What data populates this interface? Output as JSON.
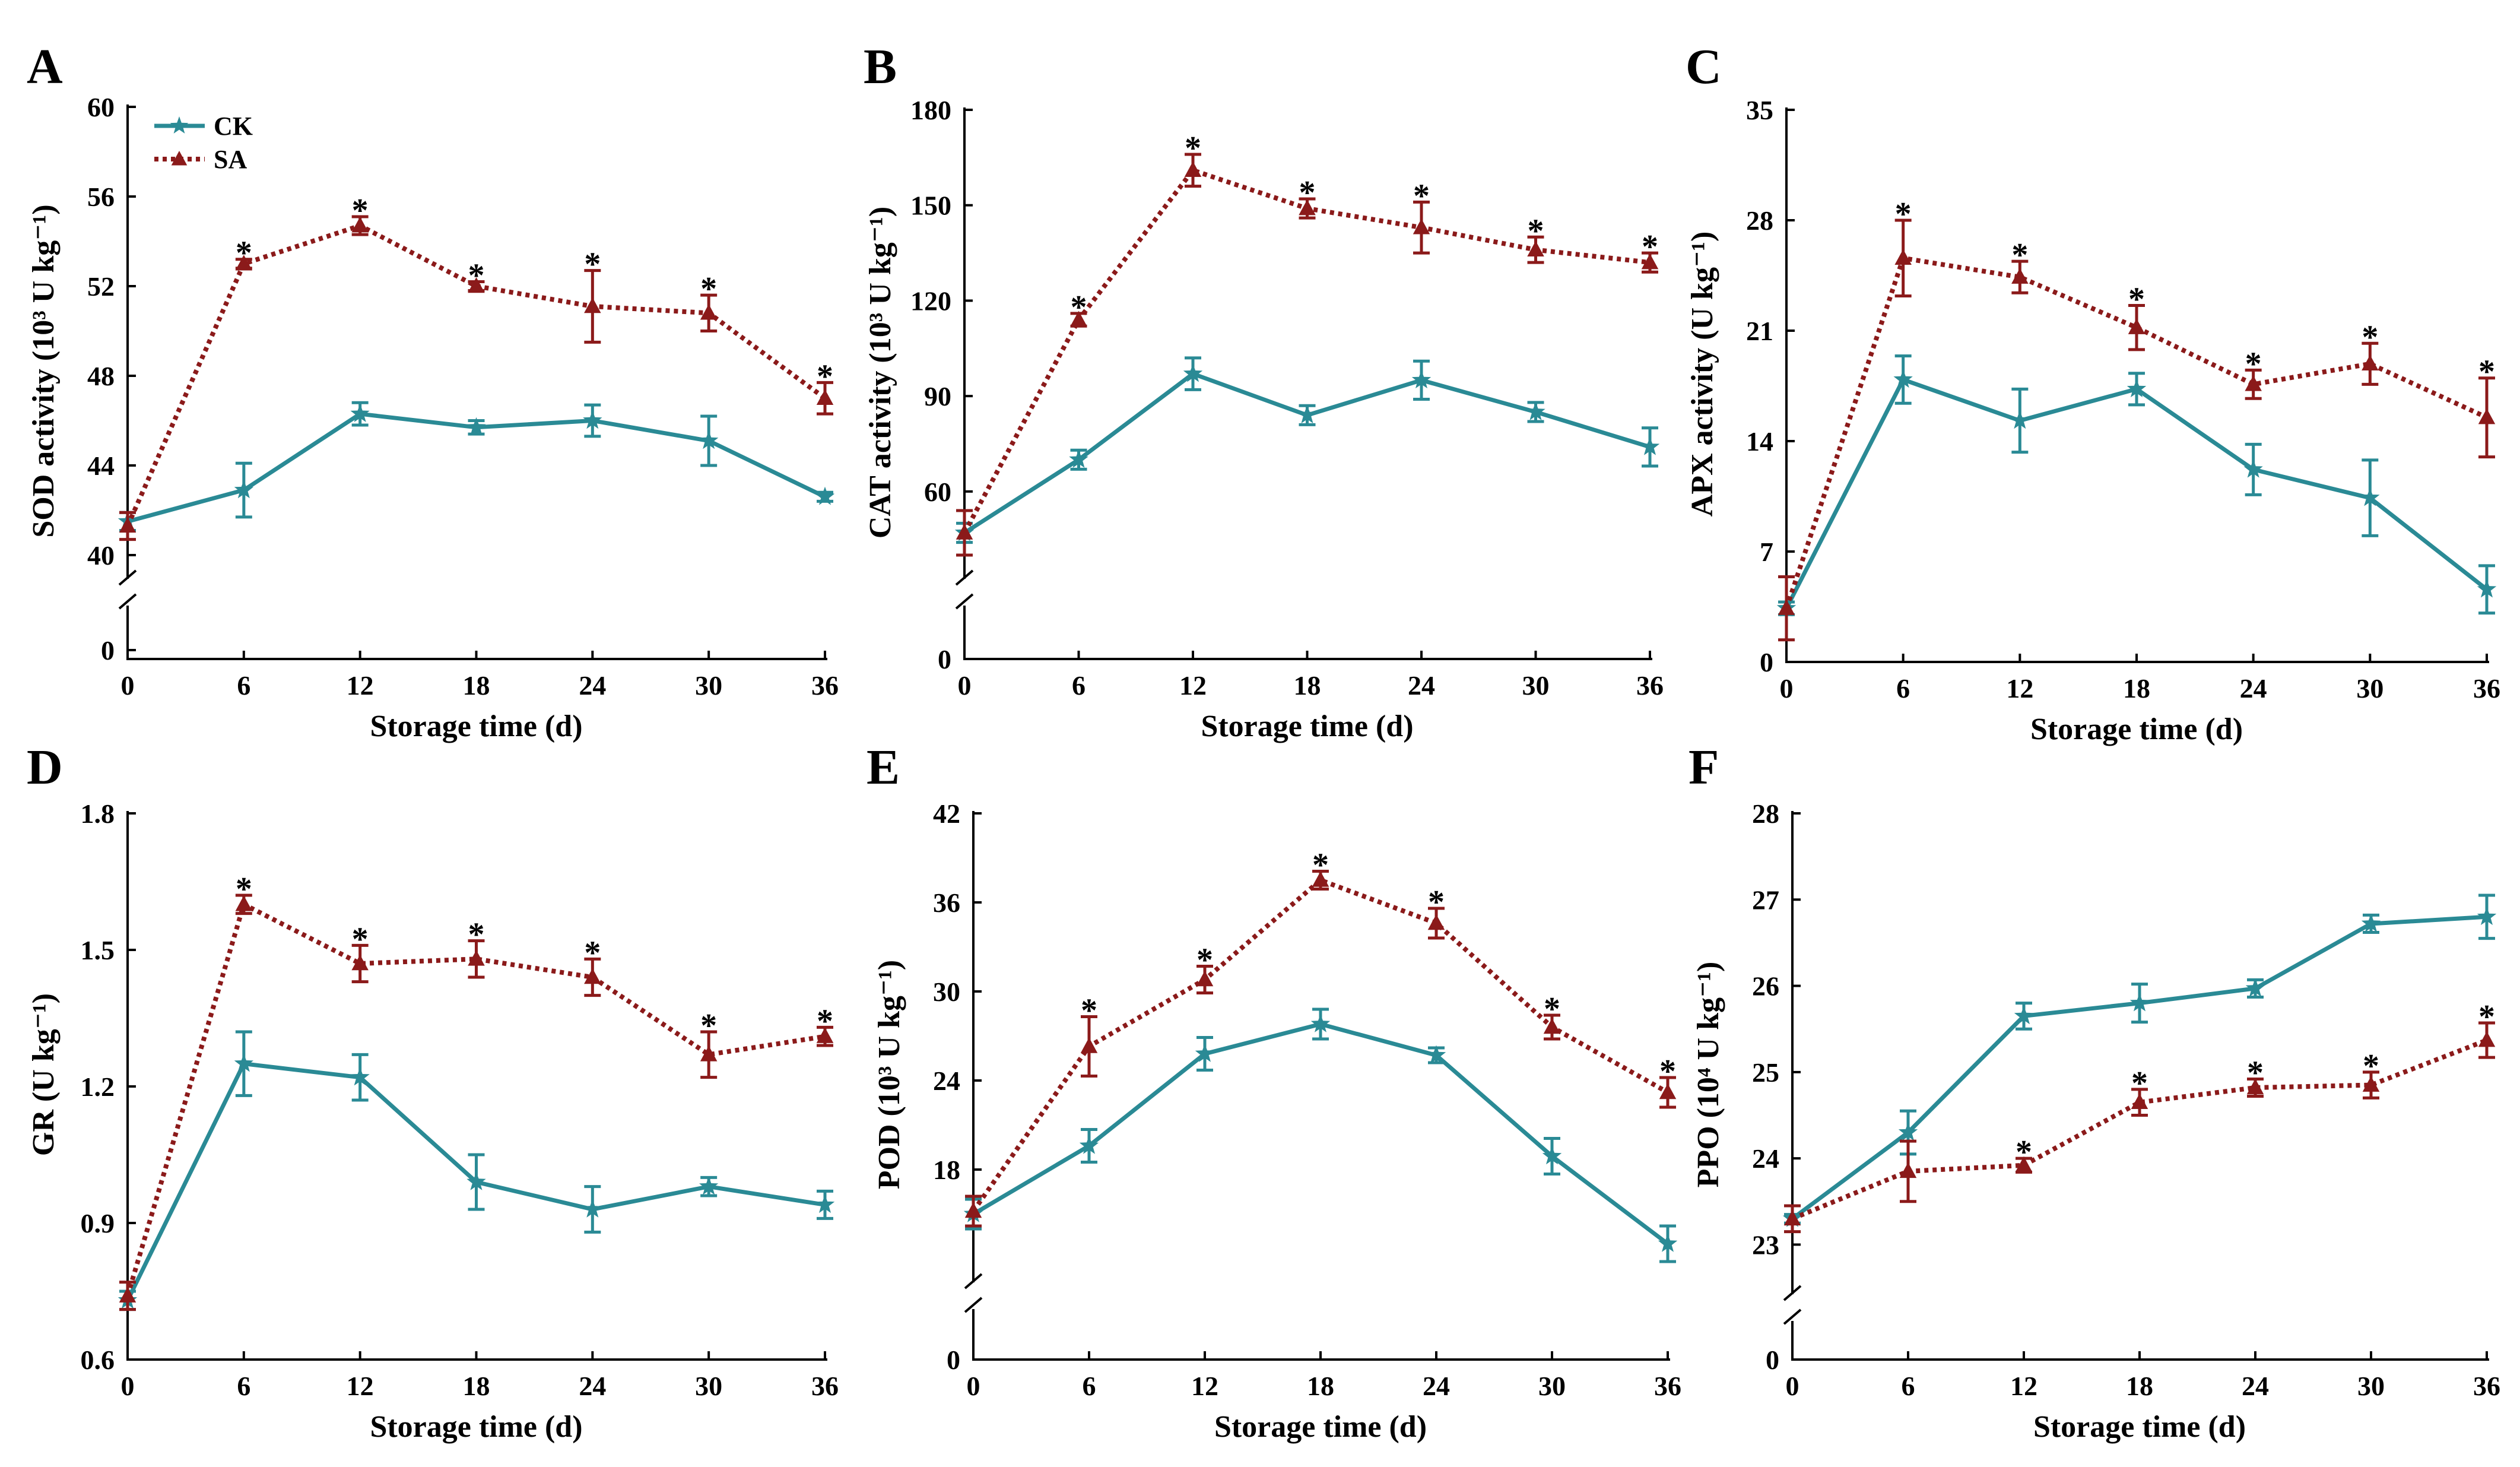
{
  "colors": {
    "CK": "#2a8a95",
    "SA": "#8b1a1a"
  },
  "legend": {
    "ck_label": "CK",
    "sa_label": "SA",
    "ck_marker": "star",
    "sa_marker": "triangle"
  },
  "chart_data": [
    {
      "panel": "A",
      "type": "line",
      "xlabel": "Storage time (d)",
      "ylabel": "SOD activity (10³ U kg⁻¹)",
      "x": [
        0,
        6,
        12,
        18,
        24,
        30,
        36
      ],
      "xticks": [
        "0",
        "6",
        "12",
        "18",
        "24",
        "30",
        "36"
      ],
      "yticks": [
        40,
        44,
        48,
        52,
        56,
        60
      ],
      "ylim": [
        40,
        60
      ],
      "axis_break": true,
      "zero_label": "0",
      "series": [
        {
          "name": "CK",
          "values": [
            41.5,
            42.9,
            46.3,
            45.7,
            46.0,
            45.1,
            42.6
          ],
          "errors": [
            0.4,
            1.2,
            0.5,
            0.3,
            0.7,
            1.1,
            0.2
          ]
        },
        {
          "name": "SA",
          "values": [
            41.3,
            53.0,
            54.7,
            52.0,
            51.1,
            50.8,
            47.0
          ],
          "errors": [
            0.6,
            0.2,
            0.4,
            0.2,
            1.6,
            0.8,
            0.7
          ]
        }
      ],
      "significance": [
        "",
        "*",
        "*",
        "*",
        "*",
        "*",
        "*"
      ]
    },
    {
      "panel": "B",
      "type": "line",
      "xlabel": "Storage time (d)",
      "ylabel": "CAT activity (10³ U kg⁻¹)",
      "x": [
        0,
        6,
        12,
        18,
        24,
        30,
        36
      ],
      "xticks": [
        "0",
        "6",
        "12",
        "18",
        "24",
        "30",
        "36"
      ],
      "yticks": [
        60,
        90,
        120,
        150,
        180
      ],
      "ylim": [
        40,
        180
      ],
      "axis_break": true,
      "zero_label": "0",
      "series": [
        {
          "name": "CK",
          "values": [
            47,
            70,
            97,
            84,
            95,
            85,
            74
          ],
          "errors": [
            3,
            3,
            5,
            3,
            6,
            3,
            6
          ]
        },
        {
          "name": "SA",
          "values": [
            47,
            114,
            161,
            149,
            143,
            136,
            132
          ],
          "errors": [
            7,
            2,
            5,
            3,
            8,
            4,
            3
          ]
        }
      ],
      "significance": [
        "",
        "*",
        "*",
        "*",
        "*",
        "*",
        "*"
      ]
    },
    {
      "panel": "C",
      "type": "line",
      "xlabel": "Storage time (d)",
      "ylabel": "APX activity (U kg⁻¹)",
      "x": [
        0,
        6,
        12,
        18,
        24,
        30,
        36
      ],
      "xticks": [
        "0",
        "6",
        "12",
        "18",
        "24",
        "30",
        "36"
      ],
      "yticks": [
        0,
        7,
        14,
        21,
        28,
        35
      ],
      "ylim": [
        0,
        35
      ],
      "axis_break": false,
      "series": [
        {
          "name": "CK",
          "values": [
            3.4,
            17.9,
            15.3,
            17.3,
            12.2,
            10.4,
            4.6
          ],
          "errors": [
            0.4,
            1.5,
            2.0,
            1.0,
            1.6,
            2.4,
            1.5
          ]
        },
        {
          "name": "SA",
          "values": [
            3.4,
            25.6,
            24.4,
            21.2,
            17.6,
            18.9,
            15.5
          ],
          "errors": [
            2.0,
            2.4,
            1.0,
            1.4,
            0.9,
            1.3,
            2.5
          ]
        }
      ],
      "significance": [
        "",
        "*",
        "*",
        "*",
        "*",
        "*",
        "*"
      ]
    },
    {
      "panel": "D",
      "type": "line",
      "xlabel": "Storage time (d)",
      "ylabel": "GR (U kg⁻¹)",
      "x": [
        0,
        6,
        12,
        18,
        24,
        30,
        36
      ],
      "xticks": [
        "0",
        "6",
        "12",
        "18",
        "24",
        "30",
        "36"
      ],
      "yticks": [
        0.6,
        0.9,
        1.2,
        1.5,
        1.8
      ],
      "ylim": [
        0.6,
        1.8
      ],
      "axis_break": false,
      "series": [
        {
          "name": "CK",
          "values": [
            0.73,
            1.25,
            1.22,
            0.99,
            0.93,
            0.98,
            0.94
          ],
          "errors": [
            0.02,
            0.07,
            0.05,
            0.06,
            0.05,
            0.02,
            0.03
          ]
        },
        {
          "name": "SA",
          "values": [
            0.74,
            1.6,
            1.47,
            1.48,
            1.44,
            1.27,
            1.31
          ],
          "errors": [
            0.03,
            0.02,
            0.04,
            0.04,
            0.04,
            0.05,
            0.02
          ]
        }
      ],
      "significance": [
        "",
        "*",
        "*",
        "*",
        "*",
        "*",
        "*"
      ]
    },
    {
      "panel": "E",
      "type": "line",
      "xlabel": "Storage time (d)",
      "ylabel": "POD (10³ U kg⁻¹)",
      "x": [
        0,
        6,
        12,
        18,
        24,
        30,
        36
      ],
      "xticks": [
        "0",
        "6",
        "12",
        "18",
        "24",
        "30",
        "36"
      ],
      "yticks": [
        18,
        24,
        30,
        36,
        42
      ],
      "ylim": [
        12,
        42
      ],
      "axis_break": true,
      "zero_label": "0",
      "series": [
        {
          "name": "CK",
          "values": [
            15.0,
            19.6,
            25.8,
            27.8,
            25.7,
            18.9,
            13.0
          ],
          "errors": [
            1.0,
            1.1,
            1.1,
            1.0,
            0.5,
            1.2,
            1.2
          ]
        },
        {
          "name": "SA",
          "values": [
            15.2,
            26.3,
            30.8,
            37.5,
            34.6,
            27.6,
            23.2
          ],
          "errors": [
            1.0,
            2.0,
            0.9,
            0.6,
            1.0,
            0.8,
            1.0
          ]
        }
      ],
      "significance": [
        "",
        "*",
        "*",
        "*",
        "*",
        "*",
        "*"
      ]
    },
    {
      "panel": "F",
      "type": "line",
      "xlabel": "Storage time (d)",
      "ylabel": "PPO (10⁴ U kg⁻¹)",
      "x": [
        0,
        6,
        12,
        18,
        24,
        30,
        36
      ],
      "xticks": [
        "0",
        "6",
        "12",
        "18",
        "24",
        "30",
        "36"
      ],
      "yticks": [
        23,
        24,
        25,
        26,
        27,
        28
      ],
      "ylim": [
        22.7,
        28
      ],
      "axis_break": true,
      "zero_label": "0",
      "series": [
        {
          "name": "CK",
          "values": [
            23.3,
            24.3,
            25.65,
            25.8,
            25.97,
            26.72,
            26.8
          ],
          "errors": [
            0.05,
            0.25,
            0.15,
            0.22,
            0.1,
            0.1,
            0.25
          ]
        },
        {
          "name": "SA",
          "values": [
            23.3,
            23.85,
            23.92,
            24.65,
            24.82,
            24.85,
            25.37
          ],
          "errors": [
            0.15,
            0.35,
            0.08,
            0.15,
            0.1,
            0.15,
            0.2
          ]
        }
      ],
      "significance": [
        "",
        "",
        "*",
        "*",
        "*",
        "*",
        "*"
      ]
    }
  ]
}
